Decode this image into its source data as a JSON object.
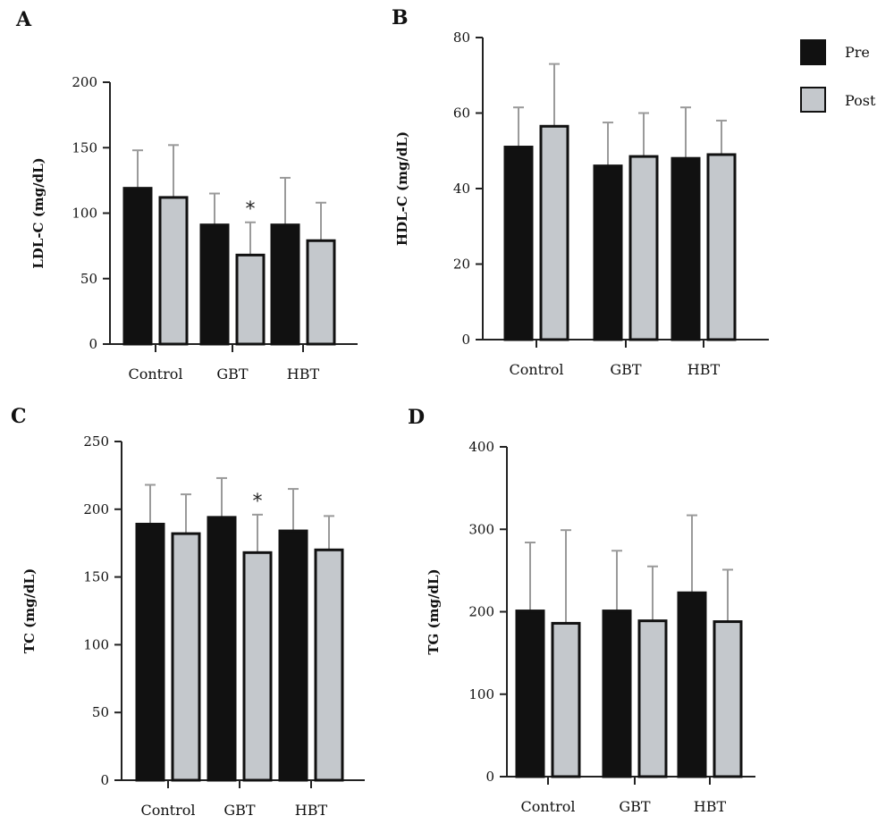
{
  "legend": {
    "items": [
      {
        "label": "Pre",
        "color": "#111111"
      },
      {
        "label": "Post",
        "color": "#c4c8cc"
      }
    ]
  },
  "chart_data": [
    {
      "type": "bar",
      "panel": "A",
      "ylabel": "LDL-C (mg/dL)",
      "ylim": [
        0,
        200
      ],
      "yticks": [
        0,
        50,
        100,
        150,
        200
      ],
      "categories": [
        "Control",
        "GBT",
        "HBT"
      ],
      "series": [
        {
          "name": "Pre",
          "values": [
            119,
            91,
            91
          ],
          "errors": [
            29,
            24,
            36
          ]
        },
        {
          "name": "Post",
          "values": [
            112,
            68,
            79
          ],
          "errors": [
            40,
            25,
            29
          ]
        }
      ],
      "annotations": [
        {
          "category": "GBT",
          "series": "Post",
          "text": "*"
        }
      ]
    },
    {
      "type": "bar",
      "panel": "B",
      "ylabel": "HDL-C (mg/dL)",
      "ylim": [
        0,
        80
      ],
      "yticks": [
        0,
        20,
        40,
        60,
        80
      ],
      "categories": [
        "Control",
        "GBT",
        "HBT"
      ],
      "series": [
        {
          "name": "Pre",
          "values": [
            51,
            46,
            48
          ],
          "errors": [
            10.5,
            11.5,
            13.5
          ]
        },
        {
          "name": "Post",
          "values": [
            56.5,
            48.5,
            49
          ],
          "errors": [
            16.5,
            11.5,
            9
          ]
        }
      ],
      "annotations": []
    },
    {
      "type": "bar",
      "panel": "C",
      "ylabel": "TC (mg/dL)",
      "ylim": [
        0,
        250
      ],
      "yticks": [
        0,
        50,
        100,
        150,
        200,
        250
      ],
      "categories": [
        "Control",
        "GBT",
        "HBT"
      ],
      "series": [
        {
          "name": "Pre",
          "values": [
            189,
            194,
            184
          ],
          "errors": [
            29,
            29,
            31
          ]
        },
        {
          "name": "Post",
          "values": [
            182,
            168,
            170
          ],
          "errors": [
            29,
            28,
            25
          ]
        }
      ],
      "annotations": [
        {
          "category": "GBT",
          "series": "Post",
          "text": "*"
        }
      ]
    },
    {
      "type": "bar",
      "panel": "D",
      "ylabel": "TG (mg/dL)",
      "ylim": [
        0,
        400
      ],
      "yticks": [
        0,
        100,
        200,
        300,
        400
      ],
      "categories": [
        "Control",
        "GBT",
        "HBT"
      ],
      "series": [
        {
          "name": "Pre",
          "values": [
            201,
            201,
            223
          ],
          "errors": [
            83,
            73,
            94
          ]
        },
        {
          "name": "Post",
          "values": [
            186,
            189,
            188
          ],
          "errors": [
            113,
            66,
            63
          ]
        }
      ],
      "annotations": []
    }
  ]
}
